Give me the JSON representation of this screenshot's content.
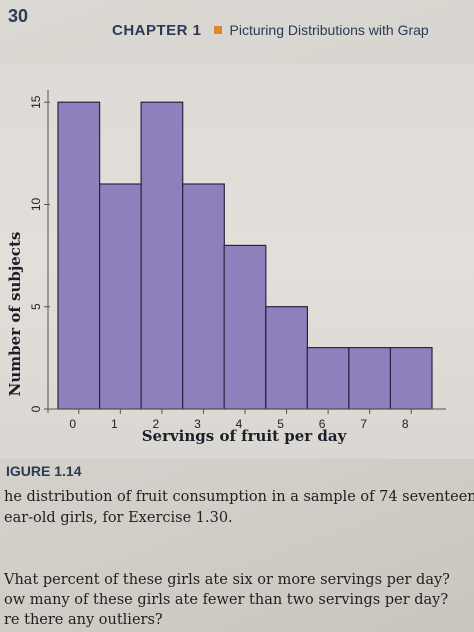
{
  "header": {
    "page_number": "30",
    "chapter_label": "CHAPTER 1",
    "chapter_title": "Picturing Distributions with Grap"
  },
  "figure": {
    "label": "IGURE 1.14",
    "caption_lines": [
      "he distribution of fruit consumption in a sample of 74 seventeen-",
      "ear-old girls, for Exercise 1.30."
    ]
  },
  "questions": [
    "Vhat percent of these girls ate six or more servings per day?",
    "ow many of these girls ate fewer than two servings per day?",
    "re there any outliers?"
  ],
  "colors": {
    "bar_fill": "#8e7fbd",
    "bar_stroke": "#2a2440",
    "axis": "#555555"
  },
  "chart_data": {
    "type": "bar",
    "categories": [
      "0",
      "1",
      "2",
      "3",
      "4",
      "5",
      "6",
      "7",
      "8"
    ],
    "values": [
      15,
      11,
      15,
      11,
      8,
      5,
      3,
      3,
      3
    ],
    "xlabel": "Servings of fruit per day",
    "ylabel": "Number of subjects",
    "yticks": [
      0,
      5,
      10,
      15
    ],
    "ylim": [
      0,
      15.5
    ],
    "grid": false
  }
}
